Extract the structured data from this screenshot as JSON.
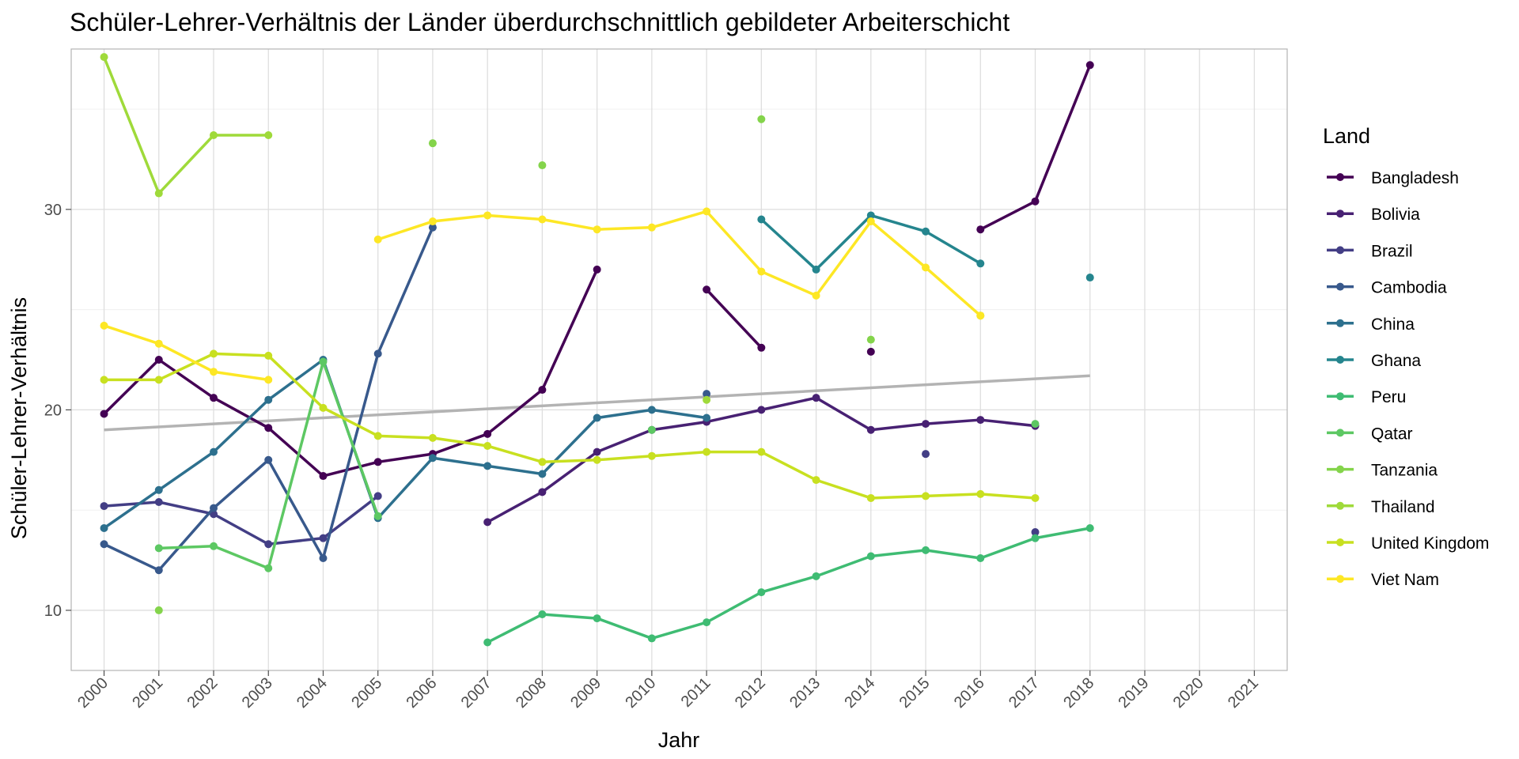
{
  "chart_data": {
    "type": "line",
    "title": "Schüler-Lehrer-Verhältnis der Länder überdurchschnittlich gebildeter Arbeiterschicht",
    "xlabel": "Jahr",
    "ylabel": "Schüler-Lehrer-Verhältnis",
    "x": [
      2000,
      2001,
      2002,
      2003,
      2004,
      2005,
      2006,
      2007,
      2008,
      2009,
      2010,
      2011,
      2012,
      2013,
      2014,
      2015,
      2016,
      2017,
      2018,
      2019,
      2020,
      2021
    ],
    "xlim": [
      1999.4,
      2021.6
    ],
    "ylim": [
      7.0,
      38.0
    ],
    "yticks": [
      10,
      20,
      30
    ],
    "grid": true,
    "legend_title": "Land",
    "legend_position": "right",
    "series": [
      {
        "name": "Bangladesh",
        "color": "#440154",
        "values": [
          19.8,
          22.5,
          20.6,
          19.1,
          16.7,
          17.4,
          17.8,
          18.8,
          21.0,
          27.0,
          null,
          26.0,
          23.1,
          null,
          22.9,
          null,
          29.0,
          30.4,
          37.2,
          null,
          null,
          null
        ]
      },
      {
        "name": "Bolivia",
        "color": "#482173",
        "values": [
          null,
          null,
          null,
          null,
          null,
          null,
          null,
          14.4,
          15.9,
          17.9,
          19.0,
          19.4,
          20.0,
          20.6,
          19.0,
          19.3,
          19.5,
          19.2,
          null,
          null,
          null,
          null
        ]
      },
      {
        "name": "Brazil",
        "color": "#433E85",
        "values": [
          15.2,
          15.4,
          14.8,
          13.3,
          13.6,
          15.7,
          null,
          null,
          null,
          null,
          null,
          null,
          null,
          null,
          null,
          17.8,
          null,
          13.9,
          null,
          null,
          null,
          null
        ]
      },
      {
        "name": "Cambodia",
        "color": "#38598C",
        "values": [
          13.3,
          12.0,
          15.1,
          17.5,
          12.6,
          22.8,
          29.1,
          null,
          null,
          null,
          null,
          20.8,
          null,
          null,
          null,
          null,
          null,
          null,
          null,
          null,
          null,
          null
        ]
      },
      {
        "name": "China",
        "color": "#2D708E",
        "values": [
          14.1,
          16.0,
          17.9,
          20.5,
          22.5,
          14.6,
          17.6,
          17.2,
          16.8,
          19.6,
          20.0,
          19.6,
          null,
          null,
          null,
          null,
          null,
          null,
          null,
          null,
          null,
          null
        ]
      },
      {
        "name": "Ghana",
        "color": "#25858E",
        "values": [
          null,
          null,
          null,
          null,
          null,
          null,
          null,
          null,
          null,
          null,
          null,
          null,
          29.5,
          27.0,
          29.7,
          28.9,
          27.3,
          null,
          26.6,
          null,
          null,
          null
        ]
      },
      {
        "name": "Peru",
        "color": "#3FBC73",
        "values": [
          null,
          null,
          null,
          null,
          null,
          null,
          null,
          8.4,
          9.8,
          9.6,
          8.6,
          9.4,
          10.9,
          11.7,
          12.7,
          13.0,
          12.6,
          13.6,
          14.1,
          null,
          null,
          null
        ]
      },
      {
        "name": "Qatar",
        "color": "#5DC863",
        "values": [
          null,
          13.1,
          13.2,
          12.1,
          22.4,
          14.7,
          null,
          null,
          null,
          null,
          19.0,
          null,
          null,
          null,
          null,
          null,
          null,
          19.3,
          null,
          null,
          null,
          null
        ]
      },
      {
        "name": "Tanzania",
        "color": "#84D44B",
        "values": [
          null,
          10.0,
          null,
          null,
          null,
          null,
          33.3,
          null,
          32.2,
          null,
          null,
          null,
          34.5,
          null,
          23.5,
          null,
          null,
          null,
          null,
          null,
          null,
          null
        ]
      },
      {
        "name": "Thailand",
        "color": "#9FDA3A",
        "values": [
          37.6,
          30.8,
          33.7,
          33.7,
          null,
          null,
          null,
          null,
          null,
          null,
          null,
          20.5,
          null,
          null,
          null,
          null,
          24.7,
          null,
          null,
          null,
          null,
          null
        ]
      },
      {
        "name": "United Kingdom",
        "color": "#C8E020",
        "values": [
          21.5,
          21.5,
          22.8,
          22.7,
          20.1,
          18.7,
          18.6,
          18.2,
          17.4,
          17.5,
          17.7,
          17.9,
          17.9,
          16.5,
          15.6,
          15.7,
          15.8,
          15.6,
          null,
          null,
          null,
          null
        ]
      },
      {
        "name": "Viet Nam",
        "color": "#FDE725",
        "values": [
          24.2,
          23.3,
          21.9,
          21.5,
          null,
          28.5,
          29.4,
          29.7,
          29.5,
          29.0,
          29.1,
          29.9,
          26.9,
          25.7,
          29.4,
          27.1,
          24.7,
          null,
          null,
          null,
          null,
          null
        ]
      }
    ],
    "trend": {
      "color": "#B3B3B3",
      "x": [
        2000,
        2018
      ],
      "y": [
        19.0,
        21.7
      ]
    }
  }
}
